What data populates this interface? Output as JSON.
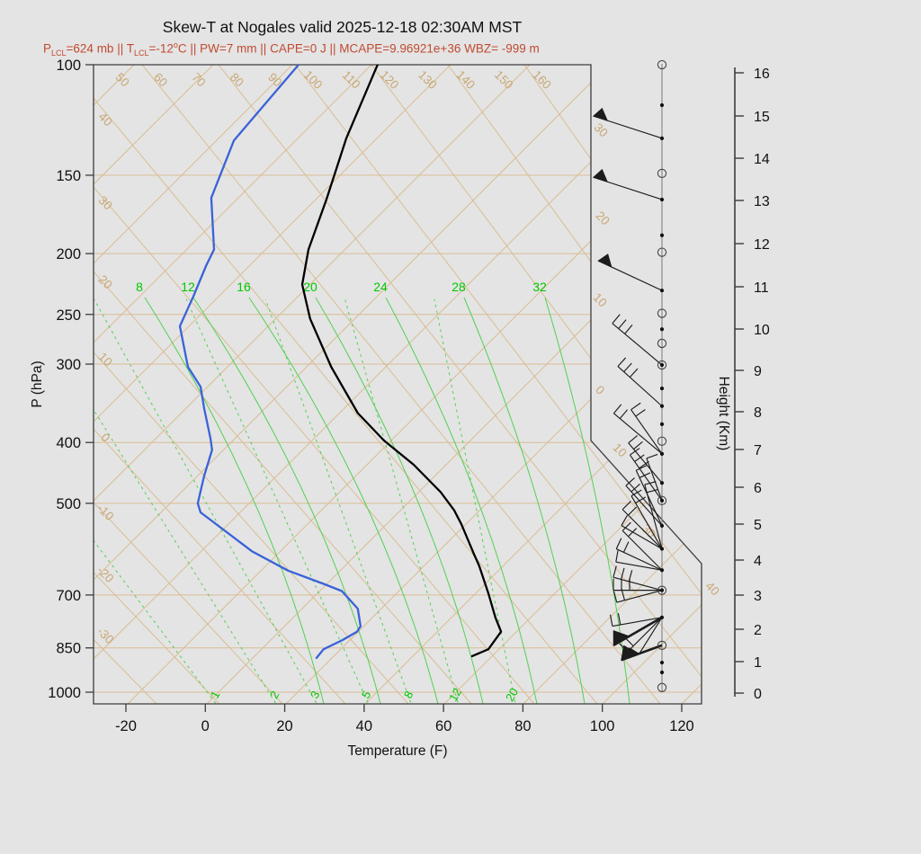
{
  "title": "Skew-T at Nogales valid 2025-12-18 02:30AM MST",
  "subtitle": {
    "color": "#bf4a30",
    "parts": [
      {
        "t": "P"
      },
      {
        "sub": "LCL"
      },
      {
        "t": "=624 mb || T"
      },
      {
        "sub": "LCL"
      },
      {
        "t": "=-12"
      },
      {
        "sup": "o"
      },
      {
        "t": "C || PW=7 mm || CAPE=0 J || MCAPE=9.96921e+36 WBZ= -999 m"
      }
    ]
  },
  "colors": {
    "background": "#e4e4e4",
    "frame": "#3c3c3c",
    "grid_tan": "#d9bd94",
    "grid_label_tan": "#c9a876",
    "green_line": "#52d052",
    "green_label": "#00c800",
    "temperature_curve": "#000000",
    "dewpoint_curve": "#3a62d8",
    "wind": "#1c1c1c",
    "subtitle": "#bf4a30"
  },
  "axes": {
    "x": {
      "label": "Temperature (F)",
      "ticks": [
        "-20",
        "0",
        "20",
        "40",
        "60",
        "80",
        "100",
        "120"
      ],
      "tick_values": [
        -20,
        0,
        20,
        40,
        60,
        80,
        100,
        120
      ]
    },
    "pressure": {
      "label": "P (hPa)",
      "ticks": [
        "100",
        "150",
        "200",
        "250",
        "300",
        "400",
        "500",
        "700",
        "850",
        "1000"
      ],
      "tick_values": [
        100,
        150,
        200,
        250,
        300,
        400,
        500,
        700,
        850,
        1000
      ]
    },
    "height": {
      "label": "Height (Km)",
      "ticks": [
        "0",
        "1",
        "2",
        "3",
        "4",
        "5",
        "6",
        "7",
        "8",
        "9",
        "10",
        "11",
        "12",
        "13",
        "14",
        "15",
        "16"
      ]
    }
  },
  "grid_labels": {
    "top_isotherms": [
      "50",
      "60",
      "70",
      "80",
      "90",
      "100",
      "110",
      "120",
      "130",
      "140",
      "150",
      "160"
    ],
    "left_isotherms": [
      "40",
      "30",
      "20",
      "10",
      "0",
      "-10",
      "-20",
      "-30"
    ],
    "right_isotherms": [
      "30",
      "20",
      "10",
      "0",
      "10",
      "30",
      "40"
    ],
    "moist_adiabats": [
      "8",
      "12",
      "16",
      "20",
      "24",
      "28",
      "32"
    ],
    "mixing_ratio": [
      "1",
      "2",
      "3",
      "5",
      "8",
      "12",
      "20"
    ]
  },
  "chart_data": {
    "type": "line",
    "subtype": "skewt-log-p-sounding",
    "station": "Nogales",
    "valid": "2025-12-18 02:30AM MST",
    "xlabel": "Temperature (F)",
    "x_range_f": [
      -30,
      125
    ],
    "pressure_range_hpa": [
      100,
      1050
    ],
    "height_range_km": [
      0,
      16
    ],
    "series": [
      {
        "name": "temperature",
        "color": "#000000",
        "points_p_hpa_t_f": [
          [
            100,
            43.4
          ],
          [
            131,
            35.5
          ],
          [
            164,
            30.5
          ],
          [
            197,
            26.0
          ],
          [
            224,
            24.4
          ],
          [
            254,
            26.4
          ],
          [
            303,
            31.7
          ],
          [
            359,
            38.4
          ],
          [
            397,
            45.0
          ],
          [
            434,
            52.5
          ],
          [
            480,
            59.3
          ],
          [
            513,
            62.7
          ],
          [
            540,
            64.5
          ],
          [
            603,
            67.7
          ],
          [
            629,
            69.0
          ],
          [
            696,
            71.3
          ],
          [
            761,
            73.1
          ],
          [
            801,
            74.5
          ],
          [
            854,
            71.3
          ],
          [
            876,
            67.2
          ]
        ]
      },
      {
        "name": "dewpoint",
        "color": "#3a62d8",
        "points_p_hpa_t_f": [
          [
            100,
            23.5
          ],
          [
            132,
            7.2
          ],
          [
            163,
            1.5
          ],
          [
            197,
            2.2
          ],
          [
            209,
            0.2
          ],
          [
            234,
            -3.0
          ],
          [
            261,
            -6.4
          ],
          [
            303,
            -4.4
          ],
          [
            326,
            -1.2
          ],
          [
            353,
            -0.3
          ],
          [
            394,
            1.3
          ],
          [
            411,
            1.7
          ],
          [
            452,
            -0.3
          ],
          [
            500,
            -1.9
          ],
          [
            517,
            -1.2
          ],
          [
            596,
            11.7
          ],
          [
            640,
            20.8
          ],
          [
            672,
            29.8
          ],
          [
            690,
            34.4
          ],
          [
            736,
            38.4
          ],
          [
            785,
            39.1
          ],
          [
            801,
            38.2
          ],
          [
            827,
            34.4
          ],
          [
            854,
            29.8
          ],
          [
            882,
            28.0
          ]
        ]
      }
    ],
    "wind_levels": [
      {
        "p": 100,
        "marker": "circle",
        "barbs": []
      },
      {
        "p": 116,
        "marker": "dot",
        "barbs": []
      },
      {
        "p": 131,
        "marker": "dot",
        "barbs": [
          {
            "kind": "pennant",
            "angle": 18,
            "len": 80
          }
        ]
      },
      {
        "p": 149,
        "marker": "circle",
        "barbs": []
      },
      {
        "p": 164,
        "marker": "dot",
        "barbs": [
          {
            "kind": "pennant",
            "angle": 18,
            "len": 80
          }
        ]
      },
      {
        "p": 187,
        "marker": "dot",
        "barbs": []
      },
      {
        "p": 199,
        "marker": "circle",
        "barbs": []
      },
      {
        "p": 229,
        "marker": "dot",
        "barbs": [
          {
            "kind": "pennant",
            "angle": 25,
            "len": 78
          }
        ]
      },
      {
        "p": 249,
        "marker": "circle",
        "barbs": []
      },
      {
        "p": 264,
        "marker": "dot",
        "barbs": []
      },
      {
        "p": 278,
        "marker": "circle",
        "barbs": []
      },
      {
        "p": 301,
        "marker": "circled-dot",
        "barbs": [
          {
            "kind": "ticks",
            "n": 3,
            "angle": 40,
            "len": 72
          }
        ]
      },
      {
        "p": 328,
        "marker": "dot",
        "barbs": []
      },
      {
        "p": 350,
        "marker": "dot",
        "barbs": [
          {
            "kind": "ticks",
            "n": 3,
            "angle": 42,
            "len": 66
          }
        ]
      },
      {
        "p": 374,
        "marker": "dot",
        "barbs": []
      },
      {
        "p": 398,
        "marker": "circle",
        "barbs": []
      },
      {
        "p": 417,
        "marker": "dot",
        "barbs": [
          {
            "kind": "ticks",
            "n": 2,
            "angle": 40,
            "len": 70
          },
          {
            "kind": "ticks",
            "n": 2,
            "angle": 55,
            "len": 60
          }
        ]
      },
      {
        "p": 464,
        "marker": "dot",
        "barbs": [
          {
            "kind": "ticks",
            "n": 2,
            "angle": 50,
            "len": 58
          }
        ]
      },
      {
        "p": 495,
        "marker": "circled-dot",
        "barbs": [
          {
            "kind": "ticks",
            "n": 3,
            "angle": 55,
            "len": 62
          },
          {
            "kind": "ticks",
            "n": 1,
            "angle": 70,
            "len": 50
          }
        ]
      },
      {
        "p": 543,
        "marker": "dot",
        "barbs": [
          {
            "kind": "ticks",
            "n": 2,
            "angle": 65,
            "len": 68
          },
          {
            "kind": "ticks",
            "n": 2,
            "angle": 48,
            "len": 60
          }
        ]
      },
      {
        "p": 591,
        "marker": "dot",
        "barbs": [
          {
            "kind": "ticks",
            "n": 2,
            "angle": 75,
            "len": 74
          },
          {
            "kind": "ticks",
            "n": 2,
            "angle": 60,
            "len": 68
          },
          {
            "kind": "ticks",
            "n": 2,
            "angle": 45,
            "len": 62
          },
          {
            "kind": "ticks",
            "n": 1,
            "angle": 30,
            "len": 52
          }
        ]
      },
      {
        "p": 639,
        "marker": "dot",
        "barbs": [
          {
            "kind": "ticks",
            "n": 2,
            "angle": 45,
            "len": 62
          },
          {
            "kind": "ticks",
            "n": 2,
            "angle": 25,
            "len": 56
          },
          {
            "kind": "ticks",
            "n": 1,
            "angle": 10,
            "len": 52
          }
        ]
      },
      {
        "p": 688,
        "marker": "circled-dot",
        "barbs": [
          {
            "kind": "ticks",
            "n": 3,
            "angle": 15,
            "len": 56
          },
          {
            "kind": "ticks",
            "n": 3,
            "angle": 0,
            "len": 54
          },
          {
            "kind": "ticks",
            "n": 2,
            "angle": -15,
            "len": 52
          }
        ]
      },
      {
        "p": 760,
        "marker": "dot",
        "barbs": [
          {
            "kind": "pennant",
            "angle": -30,
            "len": 62,
            "thick": true
          },
          {
            "kind": "ticks",
            "n": 2,
            "angle": -10,
            "len": 56
          },
          {
            "kind": "ticks",
            "n": 2,
            "angle": -45,
            "len": 54
          },
          {
            "kind": "ticks",
            "n": 1,
            "angle": -58,
            "len": 48
          }
        ]
      },
      {
        "p": 842,
        "marker": "circle",
        "barbs": [
          {
            "kind": "pennant",
            "angle": -20,
            "len": 48,
            "thick": true
          }
        ]
      },
      {
        "p": 897,
        "marker": "dot",
        "barbs": []
      },
      {
        "p": 930,
        "marker": "dot",
        "barbs": []
      },
      {
        "p": 983,
        "marker": "circle",
        "barbs": []
      }
    ]
  }
}
